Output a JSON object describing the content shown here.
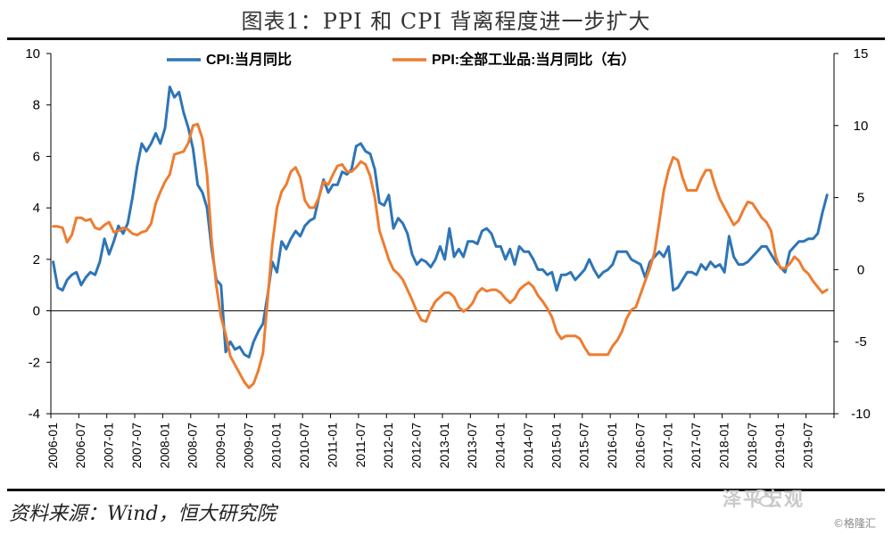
{
  "title": "图表1：PPI 和 CPI 背离程度进一步扩大",
  "source": "资料来源：Wind，恒大研究院",
  "brand": "泽平宏观",
  "watermark": "©格隆汇",
  "colors": {
    "cpi": "#2E75B6",
    "ppi": "#ED7D31",
    "axis": "#000000"
  },
  "chart_data": {
    "type": "line",
    "title": "图表1：PPI 和 CPI 背离程度进一步扩大",
    "x_range": [
      "2006-01",
      "2019-12"
    ],
    "x_tick_labels": [
      "2006-01",
      "2006-07",
      "2007-01",
      "2007-07",
      "2008-01",
      "2008-07",
      "2009-01",
      "2009-07",
      "2010-01",
      "2010-07",
      "2011-01",
      "2011-07",
      "2012-01",
      "2012-07",
      "2013-01",
      "2013-07",
      "2014-01",
      "2014-07",
      "2015-01",
      "2015-07",
      "2016-01",
      "2016-07",
      "2017-01",
      "2017-07",
      "2018-01",
      "2018-07",
      "2019-01",
      "2019-07"
    ],
    "y_left": {
      "min": -4,
      "max": 10,
      "ticks": [
        -4,
        -2,
        0,
        2,
        4,
        6,
        8,
        10
      ]
    },
    "y_right": {
      "min": -10,
      "max": 15,
      "ticks": [
        -10,
        -5,
        0,
        5,
        10,
        15
      ]
    },
    "legend": "top-center",
    "series": [
      {
        "name": "CPI:当月同比",
        "axis": "left",
        "color": "#2E75B6",
        "values": [
          1.9,
          0.9,
          0.8,
          1.2,
          1.4,
          1.5,
          1.0,
          1.3,
          1.5,
          1.4,
          1.9,
          2.8,
          2.2,
          2.7,
          3.3,
          3.0,
          3.4,
          4.4,
          5.6,
          6.5,
          6.2,
          6.5,
          6.9,
          6.5,
          7.1,
          8.7,
          8.3,
          8.5,
          7.7,
          7.1,
          6.3,
          4.9,
          4.6,
          4.0,
          2.4,
          1.2,
          1.0,
          -1.6,
          -1.2,
          -1.5,
          -1.4,
          -1.7,
          -1.8,
          -1.2,
          -0.8,
          -0.5,
          0.6,
          1.9,
          1.5,
          2.7,
          2.4,
          2.8,
          3.1,
          2.9,
          3.3,
          3.5,
          3.6,
          4.4,
          5.1,
          4.6,
          4.9,
          4.9,
          5.4,
          5.3,
          5.5,
          6.4,
          6.5,
          6.2,
          6.1,
          5.5,
          4.2,
          4.1,
          4.5,
          3.2,
          3.6,
          3.4,
          3.0,
          2.2,
          1.8,
          2.0,
          1.9,
          1.7,
          2.0,
          2.5,
          2.0,
          3.2,
          2.1,
          2.4,
          2.1,
          2.7,
          2.7,
          2.6,
          3.1,
          3.2,
          3.0,
          2.5,
          2.5,
          2.0,
          2.4,
          1.8,
          2.5,
          2.3,
          2.3,
          2.0,
          1.6,
          1.6,
          1.4,
          1.5,
          0.8,
          1.4,
          1.4,
          1.5,
          1.2,
          1.4,
          1.6,
          2.0,
          1.6,
          1.3,
          1.5,
          1.6,
          1.8,
          2.3,
          2.3,
          2.3,
          2.0,
          1.9,
          1.8,
          1.3,
          1.9,
          2.1,
          2.3,
          2.1,
          2.5,
          0.8,
          0.9,
          1.2,
          1.5,
          1.5,
          1.4,
          1.8,
          1.6,
          1.9,
          1.7,
          1.8,
          1.5,
          2.9,
          2.1,
          1.8,
          1.8,
          1.9,
          2.1,
          2.3,
          2.5,
          2.5,
          2.2,
          1.9,
          1.7,
          1.5,
          2.3,
          2.5,
          2.7,
          2.7,
          2.8,
          2.8,
          3.0,
          3.8,
          4.5
        ]
      },
      {
        "name": "PPI:全部工业品:当月同比（右）",
        "axis": "right",
        "color": "#ED7D31",
        "values": [
          3.0,
          3.0,
          2.9,
          1.9,
          2.4,
          3.6,
          3.6,
          3.4,
          3.5,
          2.9,
          2.8,
          3.1,
          3.3,
          2.6,
          2.7,
          2.9,
          2.8,
          2.5,
          2.4,
          2.6,
          2.7,
          3.2,
          4.6,
          5.4,
          6.1,
          6.6,
          8.0,
          8.1,
          8.2,
          8.8,
          10.0,
          10.1,
          9.1,
          6.6,
          2.0,
          -1.1,
          -3.3,
          -4.5,
          -6.0,
          -6.6,
          -7.2,
          -7.8,
          -8.2,
          -7.9,
          -7.0,
          -5.8,
          -2.1,
          1.7,
          4.3,
          5.4,
          5.9,
          6.8,
          7.1,
          6.4,
          4.8,
          4.3,
          4.3,
          5.0,
          6.1,
          5.9,
          6.6,
          7.2,
          7.3,
          6.8,
          6.8,
          7.1,
          7.5,
          7.3,
          6.5,
          5.0,
          2.7,
          1.7,
          0.7,
          0.0,
          -0.3,
          -0.7,
          -1.4,
          -2.1,
          -2.9,
          -3.5,
          -3.6,
          -2.8,
          -2.2,
          -1.9,
          -1.6,
          -1.6,
          -1.9,
          -2.6,
          -2.9,
          -2.7,
          -2.3,
          -1.6,
          -1.3,
          -1.5,
          -1.4,
          -1.4,
          -1.6,
          -2.0,
          -2.3,
          -2.0,
          -1.4,
          -1.1,
          -0.9,
          -1.2,
          -1.8,
          -2.2,
          -2.7,
          -3.3,
          -4.3,
          -4.8,
          -4.6,
          -4.6,
          -4.6,
          -4.8,
          -5.4,
          -5.9,
          -5.9,
          -5.9,
          -5.9,
          -5.9,
          -5.3,
          -4.9,
          -4.3,
          -3.4,
          -2.8,
          -2.6,
          -1.7,
          -0.8,
          0.1,
          1.2,
          3.3,
          5.5,
          6.9,
          7.8,
          7.6,
          6.4,
          5.5,
          5.5,
          5.5,
          6.3,
          6.9,
          6.9,
          5.8,
          4.9,
          4.3,
          3.7,
          3.1,
          3.4,
          4.1,
          4.7,
          4.6,
          4.1,
          3.6,
          3.3,
          2.7,
          0.9,
          0.1,
          0.1,
          0.4,
          0.9,
          0.6,
          0.0,
          -0.3,
          -0.8,
          -1.2,
          -1.6,
          -1.4
        ]
      }
    ]
  }
}
